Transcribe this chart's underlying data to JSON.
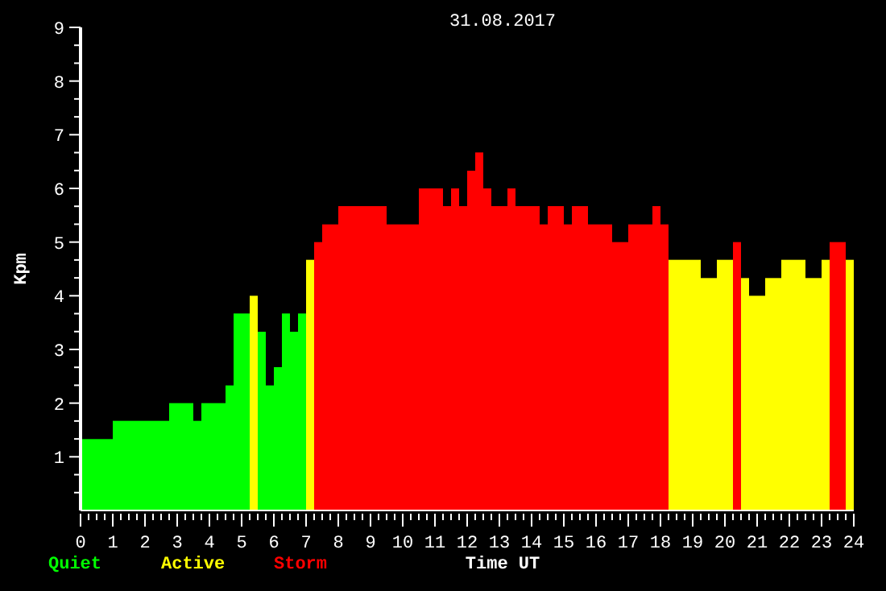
{
  "chart_data": {
    "type": "bar",
    "title": "31.08.2017",
    "xlabel": "Time UT",
    "ylabel": "Kpm",
    "x": [
      0.125,
      0.375,
      0.625,
      0.875,
      1.125,
      1.375,
      1.625,
      1.875,
      2.125,
      2.375,
      2.625,
      2.875,
      3.125,
      3.375,
      3.625,
      3.875,
      4.125,
      4.375,
      4.625,
      4.875,
      5.125,
      5.375,
      5.625,
      5.875,
      6.125,
      6.375,
      6.625,
      6.875,
      7.125,
      7.375,
      7.625,
      7.875,
      8.125,
      8.375,
      8.625,
      8.875,
      9.125,
      9.375,
      9.625,
      9.875,
      10.125,
      10.375,
      10.625,
      10.875,
      11.125,
      11.375,
      11.625,
      11.875,
      12.125,
      12.375,
      12.625,
      12.875,
      13.125,
      13.375,
      13.625,
      13.875,
      14.125,
      14.375,
      14.625,
      14.875,
      15.125,
      15.375,
      15.625,
      15.875,
      16.125,
      16.375,
      16.625,
      16.875,
      17.125,
      17.375,
      17.625,
      17.875,
      18.125,
      18.375,
      18.625,
      18.875,
      19.125,
      19.375,
      19.625,
      19.875,
      20.125,
      20.375,
      20.625,
      20.875,
      21.125,
      21.375,
      21.625,
      21.875,
      22.125,
      22.375,
      22.625,
      22.875,
      23.125,
      23.375,
      23.625,
      23.875
    ],
    "series": [
      {
        "name": "Quiet",
        "color": "#00ff00",
        "values": [
          1.33,
          1.33,
          1.33,
          1.33,
          1.67,
          1.67,
          1.67,
          1.67,
          1.67,
          1.67,
          1.67,
          2,
          2,
          2,
          1.67,
          2,
          2,
          2,
          2.33,
          3.67,
          3.67,
          null,
          3.33,
          2.33,
          2.67,
          3.67,
          3.33,
          3.67,
          null,
          null,
          null,
          null,
          null,
          null,
          null,
          null,
          null,
          null,
          null,
          null,
          null,
          null,
          null,
          null,
          null,
          null,
          null,
          null,
          null,
          null,
          null,
          null,
          null,
          null,
          null,
          null,
          null,
          null,
          null,
          null,
          null,
          null,
          null,
          null,
          null,
          null,
          null,
          null,
          null,
          null,
          null,
          null,
          null,
          null,
          null,
          null,
          null,
          null,
          null,
          null,
          null,
          null,
          null,
          null,
          null,
          null,
          null,
          null,
          null,
          null,
          null,
          null,
          null,
          null,
          null,
          null
        ]
      },
      {
        "name": "Active",
        "color": "#ffff00",
        "values": [
          null,
          null,
          null,
          null,
          null,
          null,
          null,
          null,
          null,
          null,
          null,
          null,
          null,
          null,
          null,
          null,
          null,
          null,
          null,
          null,
          null,
          4,
          null,
          null,
          null,
          null,
          null,
          null,
          4.67,
          null,
          null,
          null,
          null,
          null,
          null,
          null,
          null,
          null,
          null,
          null,
          null,
          null,
          null,
          null,
          null,
          null,
          null,
          null,
          null,
          null,
          null,
          null,
          null,
          null,
          null,
          null,
          null,
          null,
          null,
          null,
          null,
          null,
          null,
          null,
          null,
          null,
          null,
          null,
          null,
          null,
          null,
          null,
          null,
          4.67,
          4.67,
          4.67,
          4.67,
          4.33,
          4.33,
          4.67,
          4.67,
          null,
          4.33,
          4,
          4,
          4.33,
          4.33,
          4.67,
          4.67,
          4.67,
          4.33,
          4.33,
          4.67,
          null,
          null,
          4.67
        ]
      },
      {
        "name": "Storm",
        "color": "#ff0000",
        "values": [
          null,
          null,
          null,
          null,
          null,
          null,
          null,
          null,
          null,
          null,
          null,
          null,
          null,
          null,
          null,
          null,
          null,
          null,
          null,
          null,
          null,
          null,
          null,
          null,
          null,
          null,
          null,
          null,
          null,
          5,
          5.33,
          5.33,
          5.67,
          5.67,
          5.67,
          5.67,
          5.67,
          5.67,
          5.33,
          5.33,
          5.33,
          5.33,
          6,
          6,
          6,
          5.67,
          6,
          5.67,
          6.33,
          6.67,
          6,
          5.67,
          5.67,
          6,
          5.67,
          5.67,
          5.67,
          5.33,
          5.67,
          5.67,
          5.33,
          5.67,
          5.67,
          5.33,
          5.33,
          5.33,
          5,
          5,
          5.33,
          5.33,
          5.33,
          5.67,
          5.33,
          null,
          null,
          null,
          null,
          null,
          null,
          null,
          null,
          5,
          null,
          null,
          null,
          null,
          null,
          null,
          null,
          null,
          null,
          null,
          null,
          5,
          5,
          null
        ]
      }
    ],
    "xlim": [
      0,
      24
    ],
    "ylim": [
      0,
      9
    ],
    "xticks": [
      0,
      {
        "value": 0.25,
        "label": null
      },
      {
        "value": 0.5,
        "label": null
      },
      {
        "value": 0.75,
        "label": null
      },
      1,
      {
        "value": 1.25,
        "label": null
      },
      {
        "value": 1.5,
        "label": null
      },
      {
        "value": 1.75,
        "label": null
      },
      2,
      {
        "value": 2.25,
        "label": null
      },
      {
        "value": 2.5,
        "label": null
      },
      {
        "value": 2.75,
        "label": null
      },
      3,
      {
        "value": 3.25,
        "label": null
      },
      {
        "value": 3.5,
        "label": null
      },
      {
        "value": 3.75,
        "label": null
      },
      4,
      {
        "value": 4.25,
        "label": null
      },
      {
        "value": 4.5,
        "label": null
      },
      {
        "value": 4.75,
        "label": null
      },
      5,
      {
        "value": 5.25,
        "label": null
      },
      {
        "value": 5.5,
        "label": null
      },
      {
        "value": 5.75,
        "label": null
      },
      6,
      {
        "value": 6.25,
        "label": null
      },
      {
        "value": 6.5,
        "label": null
      },
      {
        "value": 6.75,
        "label": null
      },
      7,
      {
        "value": 7.25,
        "label": null
      },
      {
        "value": 7.5,
        "label": null
      },
      {
        "value": 7.75,
        "label": null
      },
      8,
      {
        "value": 8.25,
        "label": null
      },
      {
        "value": 8.5,
        "label": null
      },
      {
        "value": 8.75,
        "label": null
      },
      9,
      {
        "value": 9.25,
        "label": null
      },
      {
        "value": 9.5,
        "label": null
      },
      {
        "value": 9.75,
        "label": null
      },
      10,
      {
        "value": 10.25,
        "label": null
      },
      {
        "value": 10.5,
        "label": null
      },
      {
        "value": 10.75,
        "label": null
      },
      11,
      {
        "value": 11.25,
        "label": null
      },
      {
        "value": 11.5,
        "label": null
      },
      {
        "value": 11.75,
        "label": null
      },
      12,
      {
        "value": 12.25,
        "label": null
      },
      {
        "value": 12.5,
        "label": null
      },
      {
        "value": 12.75,
        "label": null
      },
      13,
      {
        "value": 13.25,
        "label": null
      },
      {
        "value": 13.5,
        "label": null
      },
      {
        "value": 13.75,
        "label": null
      },
      14,
      {
        "value": 14.25,
        "label": null
      },
      {
        "value": 14.5,
        "label": null
      },
      {
        "value": 14.75,
        "label": null
      },
      15,
      {
        "value": 15.25,
        "label": null
      },
      {
        "value": 15.5,
        "label": null
      },
      {
        "value": 15.75,
        "label": null
      },
      16,
      {
        "value": 16.25,
        "label": null
      },
      {
        "value": 16.5,
        "label": null
      },
      {
        "value": 16.75,
        "label": null
      },
      17,
      {
        "value": 17.25,
        "label": null
      },
      {
        "value": 17.5,
        "label": null
      },
      {
        "value": 17.75,
        "label": null
      },
      18,
      {
        "value": 18.25,
        "label": null
      },
      {
        "value": 18.5,
        "label": null
      },
      {
        "value": 18.75,
        "label": null
      },
      19,
      {
        "value": 19.25,
        "label": null
      },
      {
        "value": 19.5,
        "label": null
      },
      {
        "value": 19.75,
        "label": null
      },
      20,
      {
        "value": 20.25,
        "label": null
      },
      {
        "value": 20.5,
        "label": null
      },
      {
        "value": 20.75,
        "label": null
      },
      21,
      {
        "value": 21.25,
        "label": null
      },
      {
        "value": 21.5,
        "label": null
      },
      {
        "value": 21.75,
        "label": null
      },
      22,
      {
        "value": 22.25,
        "label": null
      },
      {
        "value": 22.5,
        "label": null
      },
      {
        "value": 22.75,
        "label": null
      },
      23,
      {
        "value": 23.25,
        "label": null
      },
      {
        "value": 23.5,
        "label": null
      },
      {
        "value": 23.75,
        "label": null
      },
      24
    ],
    "yticks": [
      {
        "value": 0.333,
        "label": null
      },
      {
        "value": 0.667,
        "label": null
      },
      1,
      {
        "value": 1.333,
        "label": null
      },
      {
        "value": 1.667,
        "label": null
      },
      2,
      {
        "value": 2.333,
        "label": null
      },
      {
        "value": 2.667,
        "label": null
      },
      3,
      {
        "value": 3.333,
        "label": null
      },
      {
        "value": 3.667,
        "label": null
      },
      4,
      {
        "value": 4.333,
        "label": null
      },
      {
        "value": 4.667,
        "label": null
      },
      5,
      {
        "value": 5.333,
        "label": null
      },
      {
        "value": 5.667,
        "label": null
      },
      6,
      {
        "value": 6.333,
        "label": null
      },
      {
        "value": 6.667,
        "label": null
      },
      7,
      {
        "value": 7.333,
        "label": null
      },
      {
        "value": 7.667,
        "label": null
      },
      8,
      {
        "value": 8.333,
        "label": null
      },
      {
        "value": 8.667,
        "label": null
      },
      9
    ],
    "grid": false,
    "legend": "bottom left"
  }
}
